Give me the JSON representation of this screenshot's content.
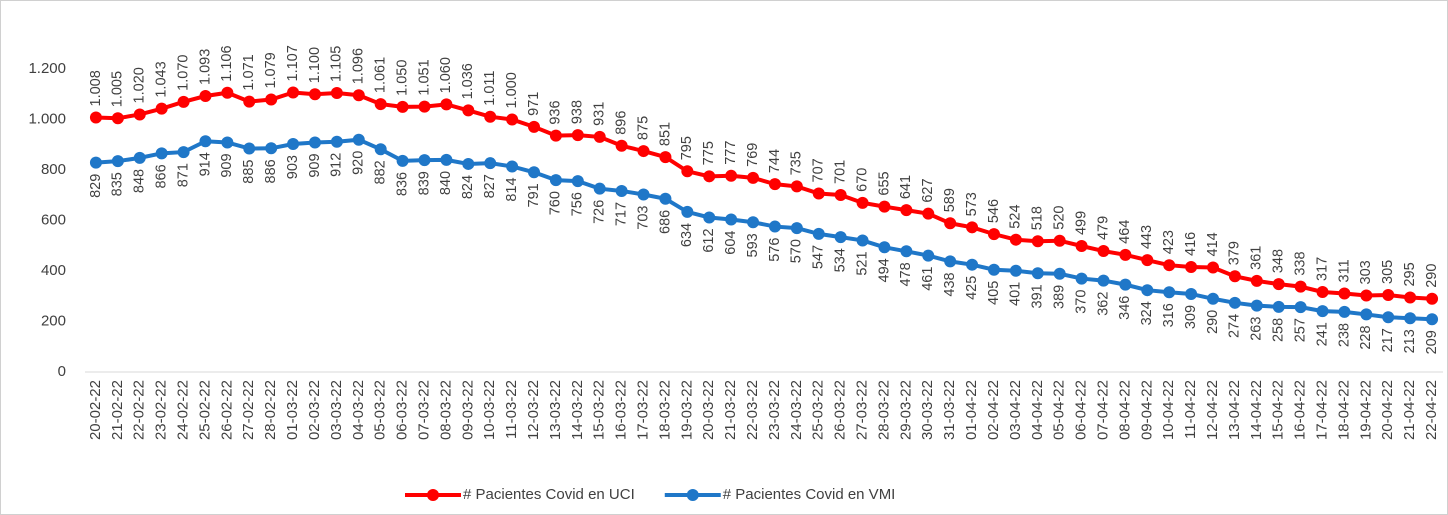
{
  "chart_data": {
    "type": "line",
    "categories": [
      "20-02-22",
      "21-02-22",
      "22-02-22",
      "23-02-22",
      "24-02-22",
      "25-02-22",
      "26-02-22",
      "27-02-22",
      "28-02-22",
      "01-03-22",
      "02-03-22",
      "03-03-22",
      "04-03-22",
      "05-03-22",
      "06-03-22",
      "07-03-22",
      "08-03-22",
      "09-03-22",
      "10-03-22",
      "11-03-22",
      "12-03-22",
      "13-03-22",
      "14-03-22",
      "15-03-22",
      "16-03-22",
      "17-03-22",
      "18-03-22",
      "19-03-22",
      "20-03-22",
      "21-03-22",
      "22-03-22",
      "23-03-22",
      "24-03-22",
      "25-03-22",
      "26-03-22",
      "27-03-22",
      "28-03-22",
      "29-03-22",
      "30-03-22",
      "31-03-22",
      "01-04-22",
      "02-04-22",
      "03-04-22",
      "04-04-22",
      "05-04-22",
      "06-04-22",
      "07-04-22",
      "08-04-22",
      "09-04-22",
      "10-04-22",
      "11-04-22",
      "12-04-22",
      "13-04-22",
      "14-04-22",
      "15-04-22",
      "16-04-22",
      "17-04-22",
      "18-04-22",
      "19-04-22",
      "20-04-22",
      "21-04-22",
      "22-04-22"
    ],
    "series": [
      {
        "name": "# Pacientes Covid en UCI",
        "color": "#ff0000",
        "values": [
          1008,
          1005,
          1020,
          1043,
          1070,
          1093,
          1106,
          1071,
          1079,
          1107,
          1100,
          1105,
          1096,
          1061,
          1050,
          1051,
          1060,
          1036,
          1011,
          1000,
          971,
          936,
          938,
          931,
          896,
          875,
          851,
          795,
          775,
          777,
          769,
          744,
          735,
          707,
          701,
          670,
          655,
          641,
          627,
          589,
          573,
          546,
          524,
          518,
          520,
          499,
          479,
          464,
          443,
          423,
          416,
          414,
          379,
          361,
          348,
          338,
          317,
          311,
          303,
          305,
          295,
          290
        ],
        "value_labels": [
          "1.008",
          "1.005",
          "1.020",
          "1.043",
          "1.070",
          "1.093",
          "1.106",
          "1.071",
          "1.079",
          "1.107",
          "1.100",
          "1.105",
          "1.096",
          "1.061",
          "1.050",
          "1.051",
          "1.060",
          "1.036",
          "1.011",
          "1.000",
          "971",
          "936",
          "938",
          "931",
          "896",
          "875",
          "851",
          "795",
          "775",
          "777",
          "769",
          "744",
          "735",
          "707",
          "701",
          "670",
          "655",
          "641",
          "627",
          "589",
          "573",
          "546",
          "524",
          "518",
          "520",
          "499",
          "479",
          "464",
          "443",
          "423",
          "416",
          "414",
          "379",
          "361",
          "348",
          "338",
          "317",
          "311",
          "303",
          "305",
          "295",
          "290"
        ]
      },
      {
        "name": "# Pacientes Covid en VMI",
        "color": "#1f77c8",
        "values": [
          829,
          835,
          848,
          866,
          871,
          914,
          909,
          885,
          886,
          903,
          909,
          912,
          920,
          882,
          836,
          839,
          840,
          824,
          827,
          814,
          791,
          760,
          756,
          726,
          717,
          703,
          686,
          634,
          612,
          604,
          593,
          576,
          570,
          547,
          534,
          521,
          494,
          478,
          461,
          438,
          425,
          405,
          401,
          391,
          389,
          370,
          362,
          346,
          324,
          316,
          309,
          290,
          274,
          263,
          258,
          257,
          241,
          238,
          228,
          217,
          213,
          209
        ]
      }
    ],
    "ylim": [
      0,
      1200
    ],
    "yticks": [
      0,
      200,
      400,
      600,
      800,
      {
        "value": 1000,
        "label": "1.000"
      },
      {
        "value": 1200,
        "label": "1.200"
      }
    ],
    "grid": false,
    "legend": "bottom"
  }
}
